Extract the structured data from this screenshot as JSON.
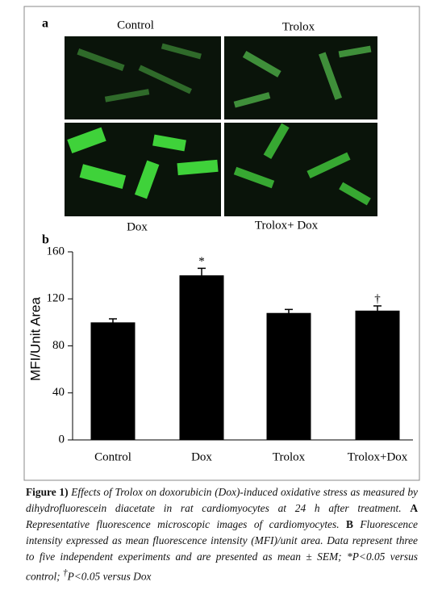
{
  "figure": {
    "panel_a": "a",
    "panel_b": "b",
    "image_labels": [
      "Control",
      "Trolox",
      "Dox",
      "Trolox+ Dox"
    ]
  },
  "chart_data": {
    "type": "bar",
    "ylabel": "MFI/Unit Area",
    "categories": [
      "Control",
      "Dox",
      "Trolox",
      "Trolox+Dox"
    ],
    "values": [
      100,
      140,
      108,
      110
    ],
    "errors": [
      3,
      6,
      3,
      4
    ],
    "color": "#000000",
    "ylim": [
      0,
      160
    ],
    "yticks": [
      0,
      40,
      80,
      120,
      160
    ],
    "significance": [
      {
        "category": "Dox",
        "label": "*"
      },
      {
        "category": "Trolox+Dox",
        "label": "†"
      }
    ]
  },
  "caption": {
    "label": "Figure 1)",
    "segments": [
      "Effects of Trolox on doxorubicin (Dox)-induced oxidative stress as measured by dihydrofluorescein diacetate in rat cardiomyocytes at 24 h after treatment.",
      "A",
      "Representative fluorescence microscopic images of cardiomyocytes.",
      "B",
      "Fluorescence intensity expressed as mean fluorescence intensity (MFI)/unit area. Data represent three to five independent experiments and are presented as mean ± SEM; *P<0.05 versus control;",
      "†",
      "P<0.05 versus Dox"
    ]
  }
}
